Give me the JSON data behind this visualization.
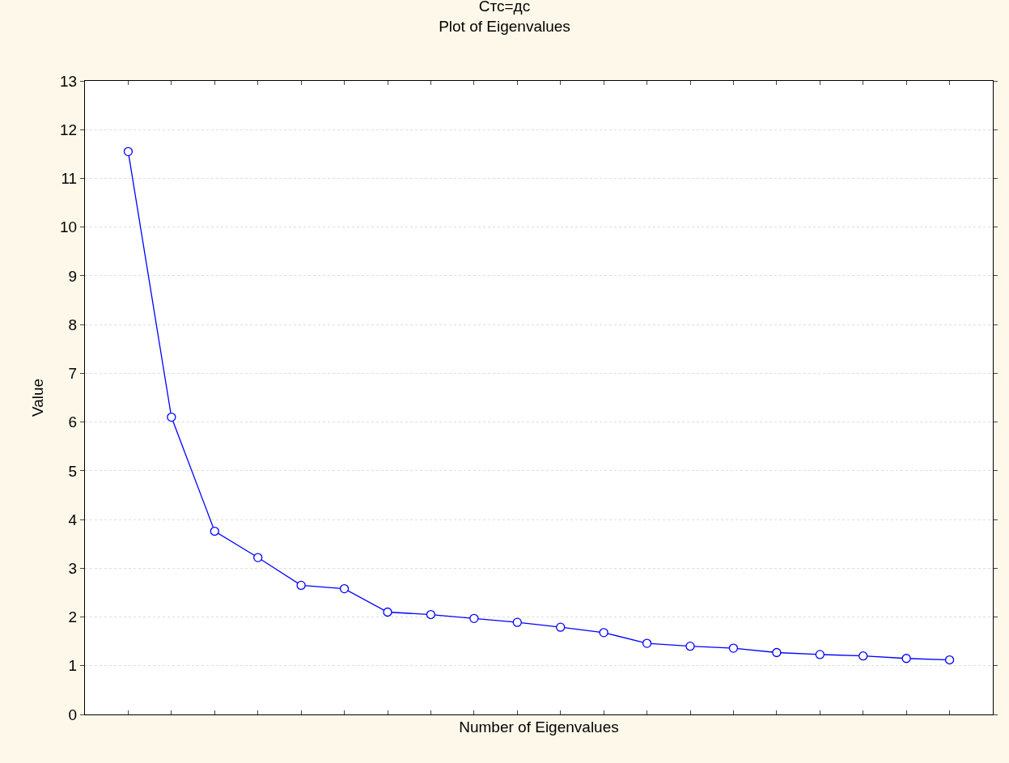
{
  "chart_data": {
    "type": "line",
    "title": "Стс=дс",
    "subtitle": "Plot of Eigenvalues",
    "xlabel": "Number of Eigenvalues",
    "ylabel": "Value",
    "categories": [
      null,
      null,
      null,
      null,
      null,
      null,
      null,
      null,
      null,
      null,
      null,
      null,
      null,
      null,
      null,
      null,
      null,
      null,
      null,
      null
    ],
    "series": [
      {
        "color": "#0000ff",
        "values": [
          11.55,
          6.1,
          3.76,
          3.22,
          2.65,
          2.58,
          2.1,
          2.05,
          1.97,
          1.89,
          1.79,
          1.68,
          1.46,
          1.4,
          1.36,
          1.27,
          1.23,
          1.2,
          1.15,
          1.12
        ]
      }
    ],
    "ylim": [
      0,
      13
    ],
    "yticks": [
      0,
      1,
      2,
      3,
      4,
      5,
      6,
      7,
      8,
      9,
      10,
      11,
      12,
      13
    ],
    "grid": "y",
    "marker": "circle",
    "line_style": "solid",
    "legend": false,
    "tick_labels": "y"
  }
}
